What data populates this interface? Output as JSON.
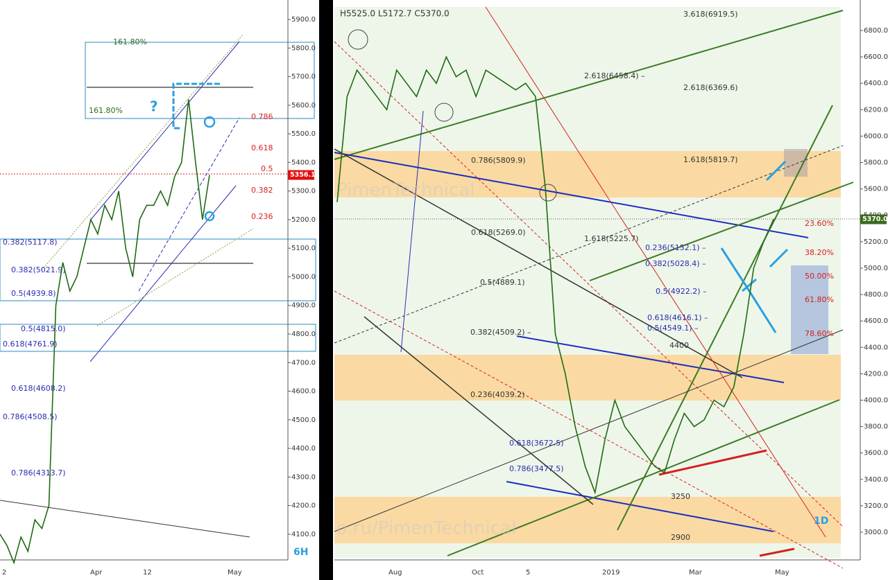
{
  "chart_data": [
    {
      "type": "line",
      "color": "#1f6b12",
      "values": [
        4100,
        4060,
        4000,
        4090,
        4040,
        4150,
        4120,
        4200,
        4900,
        5050,
        4950,
        5000,
        5100,
        5200,
        5150,
        5250,
        5200,
        5300,
        5100,
        5000,
        5200,
        5250,
        5250,
        5300,
        5250,
        5350,
        5400,
        5620,
        5400,
        5200,
        5356.1
      ],
      "value_labels": [
        null,
        null,
        null,
        null,
        null,
        null,
        null,
        null,
        null,
        null,
        null,
        null,
        null,
        null,
        null,
        null,
        null,
        null,
        null,
        null,
        null,
        null,
        null,
        null,
        null,
        null,
        null,
        null,
        null,
        null,
        "5356.1"
      ],
      "ylim": [
        4010,
        5968
      ],
      "yticks": [
        {
          "value": 4100,
          "label": "4100.0"
        },
        {
          "value": 4200,
          "label": "4200.0"
        },
        {
          "value": 4300,
          "label": "4300.0"
        },
        {
          "value": 4400,
          "label": "4400.0"
        },
        {
          "value": 4500,
          "label": "4500.0"
        },
        {
          "value": 4600,
          "label": "4600.0"
        },
        {
          "value": 4700,
          "label": "4700.0"
        },
        {
          "value": 4800,
          "label": "4800.0"
        },
        {
          "value": 4900,
          "label": "4900.0"
        },
        {
          "value": 5000,
          "label": "5000.0"
        },
        {
          "value": 5100,
          "label": "5100.0"
        },
        {
          "value": 5200,
          "label": "5200.0"
        },
        {
          "value": 5300,
          "label": "5300.0"
        },
        {
          "value": 5400,
          "label": "5400.0"
        },
        {
          "value": 5500,
          "label": "5500.0"
        },
        {
          "value": 5600,
          "label": "5600.0"
        },
        {
          "value": 5700,
          "label": "5700.0"
        },
        {
          "value": 5800,
          "label": "5800.0"
        },
        {
          "value": 5900,
          "label": "5900.0"
        }
      ],
      "x_labels": [
        "2",
        "Apr",
        "12",
        "May"
      ],
      "annotations": [
        "161.80%",
        "161.80%",
        "?",
        "0.786",
        "0.618",
        "0.5",
        "0.382",
        "0.236",
        "0.382(5117.8)",
        "0.382(5021.9)",
        "0.5(4939.8)",
        "0.5(4815.0)",
        "0.618(4761.9)",
        "0.618(4608.2)",
        "0.786(4508.5)",
        "0.786(4313.7)",
        "6H"
      ]
    },
    {
      "type": "line",
      "color": "#1f6b12",
      "values": [
        5500,
        6300,
        6500,
        6400,
        6300,
        6200,
        6500,
        6400,
        6300,
        6500,
        6400,
        6600,
        6450,
        6500,
        6300,
        6500,
        6450,
        6400,
        6350,
        6400,
        6300,
        5600,
        4500,
        4200,
        3800,
        3500,
        3300,
        3700,
        4000,
        3800,
        3700,
        3600,
        3500,
        3450,
        3700,
        3900,
        3800,
        3850,
        4000,
        3950,
        4100,
        4500,
        5000,
        5200,
        5370.0
      ],
      "value_labels": [
        null,
        null,
        null,
        null,
        null,
        null,
        null,
        null,
        null,
        null,
        null,
        null,
        null,
        null,
        null,
        null,
        null,
        null,
        null,
        null,
        null,
        null,
        null,
        null,
        null,
        null,
        null,
        null,
        null,
        null,
        null,
        null,
        null,
        null,
        null,
        null,
        null,
        null,
        null,
        null,
        null,
        null,
        null,
        null,
        "5370.0"
      ],
      "ylim": [
        2790,
        7031
      ],
      "yticks": [
        {
          "value": 3000,
          "label": "3000.0"
        },
        {
          "value": 3200,
          "label": "3200.0"
        },
        {
          "value": 3400,
          "label": "3400.0"
        },
        {
          "value": 3600,
          "label": "3600.0"
        },
        {
          "value": 3800,
          "label": "3800.0"
        },
        {
          "value": 4000,
          "label": "4000.0"
        },
        {
          "value": 4200,
          "label": "4200.0"
        },
        {
          "value": 4400,
          "label": "4400.0"
        },
        {
          "value": 4600,
          "label": "4600.0"
        },
        {
          "value": 4800,
          "label": "4800.0"
        },
        {
          "value": 5000,
          "label": "5000.0"
        },
        {
          "value": 5200,
          "label": "5200.0"
        },
        {
          "value": 5400,
          "label": "5400.0"
        },
        {
          "value": 5600,
          "label": "5600.0"
        },
        {
          "value": 5800,
          "label": "5800.0"
        },
        {
          "value": 6000,
          "label": "6000.0"
        },
        {
          "value": 6200,
          "label": "6200.0"
        },
        {
          "value": 6400,
          "label": "6400.0"
        },
        {
          "value": 6600,
          "label": "6600.0"
        },
        {
          "value": 6800,
          "label": "6800.0"
        }
      ],
      "x_labels": [
        "Aug",
        "Oct",
        "5",
        "2019",
        "Mar",
        "May"
      ],
      "header": "H5525.0  L5172.7  C5370.0",
      "annotations": [
        "3.618(6919.5)",
        "2.618(6458.4) –",
        "2.618(6369.6)",
        "0.786(5809.9)",
        "1.618(5819.7)",
        "0.618(5269.0)",
        "1.618(5225.7)",
        "0.236(5152.1) –",
        "0.382(5028.4) –",
        "23.60%",
        "38.20%",
        "50.00%",
        "61.80%",
        "78.60%",
        "0.5(4889.1)",
        "0.5(4922.2) –",
        "0.618(4616.1) –",
        "0.5(4549.1) –",
        "0.382(4509.2) –",
        "4400",
        "0.236(4039.2)",
        "0.618(3672.5)",
        "0.786(3477.5)",
        "3250",
        "2900",
        "1D",
        "PimenTechnical",
        "o.ru/PimenTechnical"
      ]
    }
  ]
}
